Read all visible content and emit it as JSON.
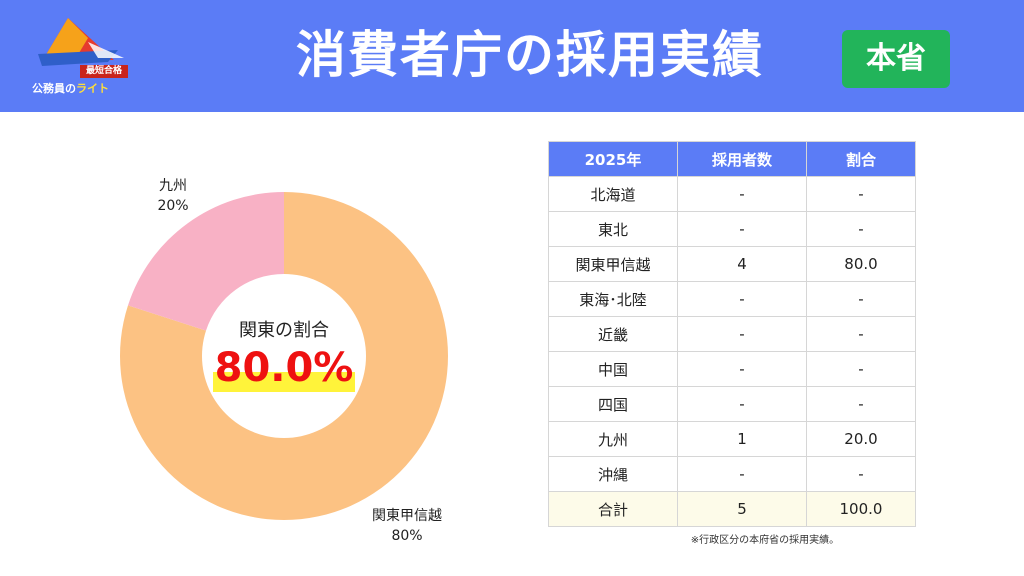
{
  "header": {
    "logo_badge": "最短合格",
    "logo_text_main": "公務員の",
    "logo_text_accent": "ライト",
    "title": "消費者庁の採用実績",
    "tag": "本省"
  },
  "colors": {
    "header_bg": "#5b7cf6",
    "tag_bg": "#22b45a",
    "slice_kanto": "#fcc283",
    "slice_kyushu": "#f8b1c5",
    "highlight": "#fff33a",
    "value_text": "#ee1111"
  },
  "chart_data": {
    "type": "pie",
    "donut": true,
    "center_label": "関東の割合",
    "center_value": "80.0%",
    "slices": [
      {
        "label": "関東甲信越",
        "value": 80,
        "display": "80%",
        "color": "#fcc283"
      },
      {
        "label": "九州",
        "value": 20,
        "display": "20%",
        "color": "#f8b1c5"
      }
    ]
  },
  "table": {
    "headers": [
      "2025年",
      "採用者数",
      "割合"
    ],
    "rows": [
      [
        "北海道",
        "-",
        "-"
      ],
      [
        "東北",
        "-",
        "-"
      ],
      [
        "関東甲信越",
        "4",
        "80.0"
      ],
      [
        "東海･北陸",
        "-",
        "-"
      ],
      [
        "近畿",
        "-",
        "-"
      ],
      [
        "中国",
        "-",
        "-"
      ],
      [
        "四国",
        "-",
        "-"
      ],
      [
        "九州",
        "1",
        "20.0"
      ],
      [
        "沖縄",
        "-",
        "-"
      ]
    ],
    "total": [
      "合計",
      "5",
      "100.0"
    ]
  },
  "note": "※行政区分の本府省の採用実績。"
}
